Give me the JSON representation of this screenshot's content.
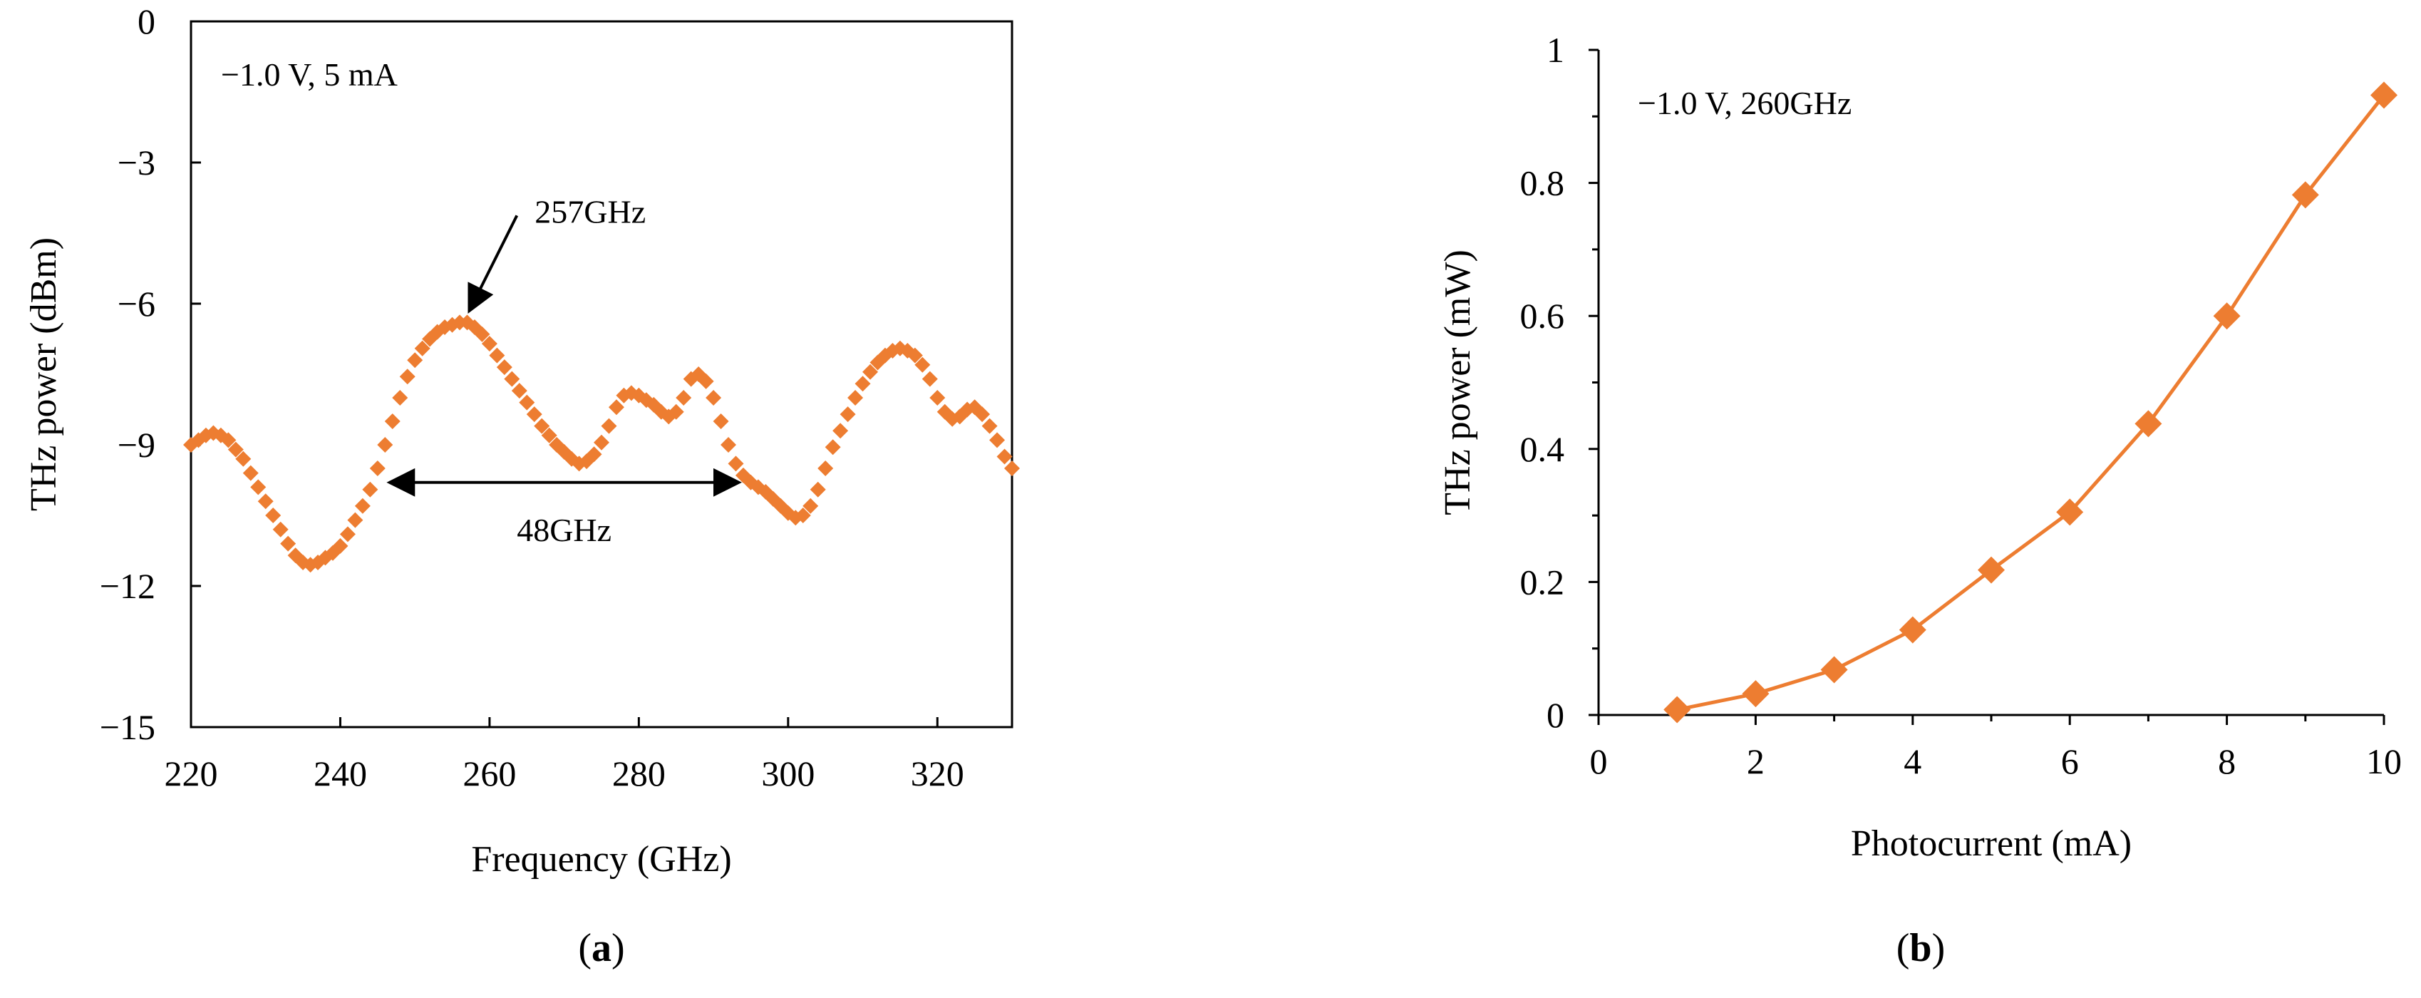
{
  "accent_color": "#ED7D31",
  "chart_data": [
    {
      "type": "scatter",
      "panel_label": "a",
      "xlabel": "Frequency (GHz)",
      "ylabel": "THz power (dBm)",
      "xlim": [
        220,
        330
      ],
      "ylim": [
        -15,
        0
      ],
      "xticks": [
        220,
        240,
        260,
        280,
        300,
        320
      ],
      "yticks": [
        0,
        -3,
        -6,
        -9,
        -12,
        -15
      ],
      "xtick_labels": [
        "220",
        "240",
        "260",
        "280",
        "300",
        "320"
      ],
      "ytick_labels": [
        "0",
        "−3",
        "−6",
        "−9",
        "−12",
        "−15"
      ],
      "marker": "diamond",
      "color": "#ED7D31",
      "annotations": {
        "condition": "−1.0 V, 5 mA",
        "peak_label": "257GHz",
        "peak_at": [
          256.5,
          -6.4
        ],
        "bandwidth_label": "48GHz",
        "bandwidth_range": [
          246,
          294
        ],
        "bandwidth_y": -9.8
      },
      "x": [
        220,
        221,
        222,
        223,
        224,
        225,
        226,
        227,
        228,
        229,
        230,
        231,
        232,
        233,
        234,
        235,
        236,
        237,
        238,
        239,
        240,
        241,
        242,
        243,
        244,
        245,
        246,
        247,
        248,
        249,
        250,
        251,
        252,
        253,
        254,
        255,
        256,
        257,
        258,
        259,
        260,
        261,
        262,
        263,
        264,
        265,
        266,
        267,
        268,
        269,
        270,
        271,
        272,
        273,
        274,
        275,
        276,
        277,
        278,
        279,
        280,
        281,
        282,
        283,
        284,
        285,
        286,
        287,
        288,
        289,
        290,
        291,
        292,
        293,
        294,
        295,
        296,
        297,
        298,
        299,
        300,
        301,
        302,
        303,
        304,
        305,
        306,
        307,
        308,
        309,
        310,
        311,
        312,
        313,
        314,
        315,
        316,
        317,
        318,
        319,
        320,
        321,
        322,
        323,
        324,
        325,
        326,
        327,
        328,
        329,
        330
      ],
      "y": [
        -9.0,
        -8.9,
        -8.8,
        -8.75,
        -8.8,
        -8.9,
        -9.1,
        -9.3,
        -9.6,
        -9.9,
        -10.2,
        -10.5,
        -10.8,
        -11.1,
        -11.35,
        -11.5,
        -11.55,
        -11.5,
        -11.4,
        -11.3,
        -11.15,
        -10.9,
        -10.6,
        -10.3,
        -9.95,
        -9.5,
        -9.0,
        -8.5,
        -8.0,
        -7.55,
        -7.2,
        -6.95,
        -6.75,
        -6.6,
        -6.5,
        -6.45,
        -6.4,
        -6.4,
        -6.5,
        -6.65,
        -6.85,
        -7.1,
        -7.35,
        -7.6,
        -7.85,
        -8.1,
        -8.35,
        -8.6,
        -8.8,
        -9.0,
        -9.15,
        -9.3,
        -9.4,
        -9.35,
        -9.2,
        -8.95,
        -8.6,
        -8.2,
        -7.95,
        -7.9,
        -7.95,
        -8.05,
        -8.15,
        -8.3,
        -8.4,
        -8.3,
        -8.0,
        -7.6,
        -7.5,
        -7.65,
        -8.0,
        -8.5,
        -9.0,
        -9.4,
        -9.65,
        -9.8,
        -9.9,
        -10.0,
        -10.15,
        -10.3,
        -10.45,
        -10.55,
        -10.5,
        -10.3,
        -9.95,
        -9.5,
        -9.05,
        -8.7,
        -8.35,
        -8.0,
        -7.7,
        -7.45,
        -7.25,
        -7.1,
        -7.0,
        -6.95,
        -7.0,
        -7.1,
        -7.3,
        -7.6,
        -8.0,
        -8.3,
        -8.45,
        -8.4,
        -8.25,
        -8.2,
        -8.35,
        -8.6,
        -8.9,
        -9.25,
        -9.5
      ]
    },
    {
      "type": "line",
      "panel_label": "b",
      "xlabel": "Photocurrent (mA)",
      "ylabel": "THz power (mW)",
      "xlim": [
        0,
        10
      ],
      "ylim": [
        0,
        1
      ],
      "xticks": [
        0,
        2,
        4,
        6,
        8,
        10
      ],
      "yticks": [
        0,
        0.2,
        0.4,
        0.6,
        0.8,
        1
      ],
      "xtick_labels": [
        "0",
        "2",
        "4",
        "6",
        "8",
        "10"
      ],
      "ytick_labels": [
        "0",
        "0.2",
        "0.4",
        "0.6",
        "0.8",
        "1"
      ],
      "marker": "diamond",
      "color": "#ED7D31",
      "annotations": {
        "condition": "−1.0 V, 260GHz"
      },
      "x": [
        1,
        2,
        3,
        4,
        5,
        6,
        7,
        8,
        9,
        10
      ],
      "y": [
        0.008,
        0.032,
        0.068,
        0.128,
        0.218,
        0.305,
        0.438,
        0.6,
        0.782,
        0.932
      ]
    }
  ]
}
